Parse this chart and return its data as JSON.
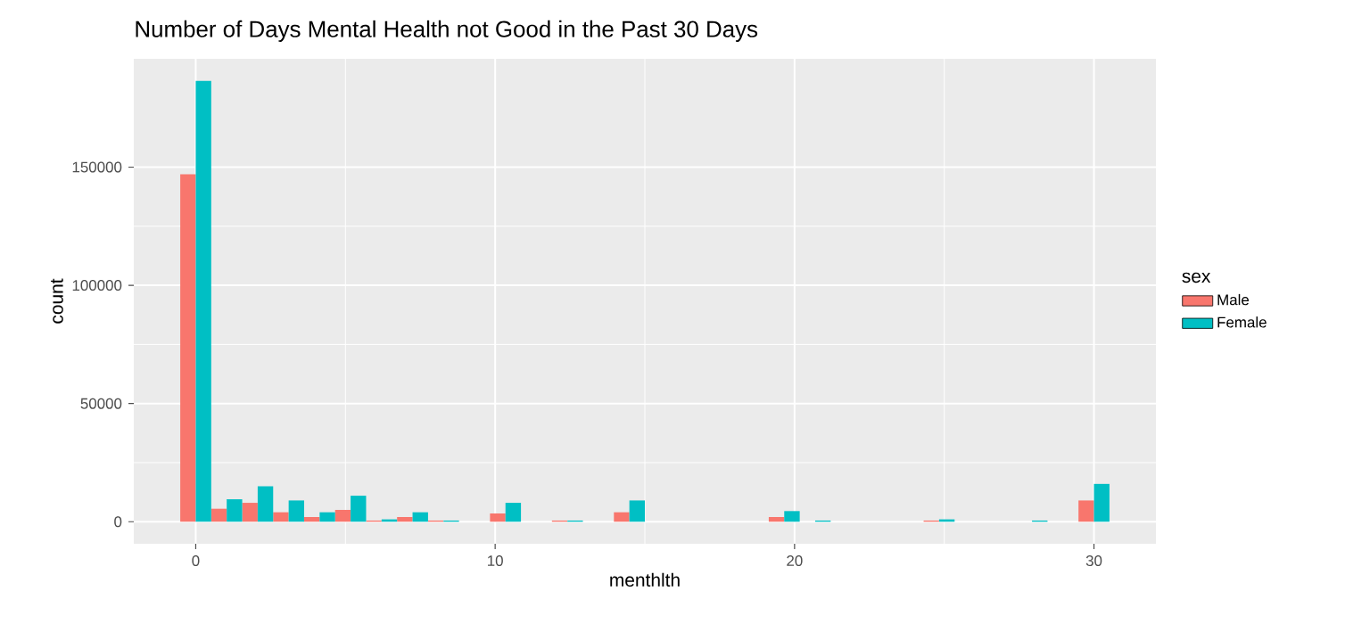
{
  "chart_data": {
    "type": "histogram",
    "title": "Number of Days Mental Health not Good in the Past 30 Days",
    "xlabel": "menthlth",
    "ylabel": "count",
    "legend_title": "sex",
    "bins": [
      -0.517,
      0.517,
      1.552,
      2.586,
      3.621,
      4.655,
      5.69,
      6.724,
      7.759,
      8.793,
      9.828,
      10.862,
      11.897,
      12.931,
      13.966,
      15.0,
      16.034,
      17.069,
      18.103,
      19.138,
      20.172,
      21.207,
      22.241,
      23.276,
      24.31,
      25.345,
      26.379,
      27.414,
      28.448,
      29.483,
      30.517
    ],
    "series": [
      {
        "name": "Male",
        "color": "#f8766d",
        "values": [
          147000,
          5500,
          8000,
          4000,
          2000,
          5000,
          500,
          2000,
          500,
          0,
          3500,
          0,
          500,
          0,
          4000,
          0,
          0,
          0,
          0,
          2000,
          0,
          0,
          0,
          0,
          500,
          0,
          0,
          0,
          0,
          9000
        ]
      },
      {
        "name": "Female",
        "color": "#00bfc4",
        "values": [
          186500,
          9500,
          15000,
          9000,
          4000,
          11000,
          1000,
          4000,
          500,
          0,
          8000,
          0,
          500,
          0,
          9000,
          0,
          0,
          0,
          0,
          4500,
          500,
          0,
          0,
          0,
          1000,
          0,
          0,
          500,
          0,
          16000
        ]
      }
    ],
    "xlim": [
      -2.069,
      32.069
    ],
    "ylim": [
      -9325,
      195825
    ],
    "xticks": [
      0,
      10,
      20,
      30
    ],
    "yticks": [
      0,
      50000,
      100000,
      150000
    ],
    "grid": true,
    "legend": "right"
  }
}
